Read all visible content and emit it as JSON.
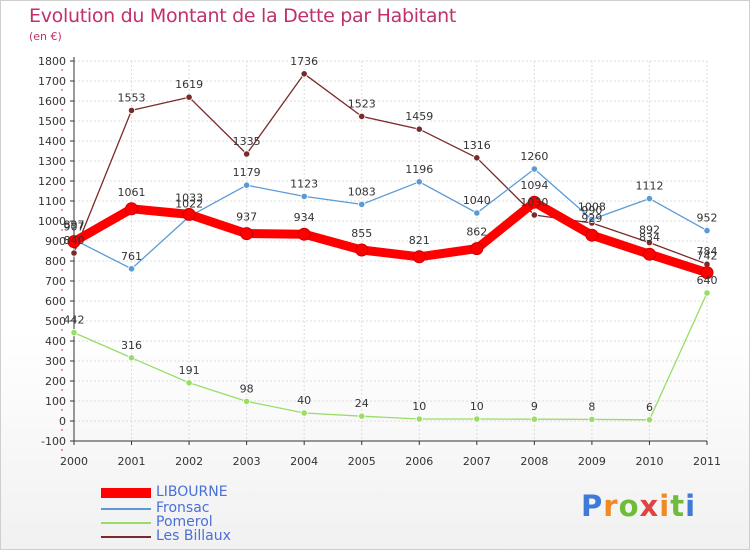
{
  "chart_data": {
    "type": "line",
    "title": "Evolution du Montant de la Dette par Habitant",
    "subtitle": "(en €)",
    "categories": [
      "2000",
      "2001",
      "2002",
      "2003",
      "2004",
      "2005",
      "2006",
      "2007",
      "2008",
      "2009",
      "2010",
      "2011"
    ],
    "ylim": [
      -100,
      1800
    ],
    "yticks": [
      -100,
      0,
      100,
      200,
      300,
      400,
      500,
      600,
      700,
      800,
      900,
      1000,
      1100,
      1200,
      1300,
      1400,
      1500,
      1600,
      1700,
      1800
    ],
    "grid": true,
    "legend_position": "bottom-left",
    "series": [
      {
        "name": "LIBOURNE",
        "color": "#ff0000",
        "values": [
          897,
          1061,
          1033,
          937,
          934,
          855,
          821,
          862,
          1094,
          929,
          834,
          742
        ],
        "labels": [
          "897",
          "1061",
          "1033",
          "937",
          "934",
          "855",
          "821",
          "862",
          "1094",
          "929",
          "834",
          "742"
        ]
      },
      {
        "name": "Fronsac",
        "color": "#5b9bd5",
        "values": [
          907,
          761,
          1022,
          1179,
          1123,
          1083,
          1196,
          1040,
          1260,
          1008,
          1112,
          952
        ],
        "labels": [
          "907",
          "761",
          "1022",
          "1179",
          "1123",
          "1083",
          "1196",
          "1040",
          "1260",
          "1008",
          "1112",
          "952"
        ]
      },
      {
        "name": "Pomerol",
        "color": "#99dd66",
        "values": [
          442,
          316,
          191,
          98,
          40,
          24,
          10,
          10,
          9,
          8,
          6,
          640
        ],
        "labels": [
          "442",
          "316",
          "191",
          "98",
          "40",
          "24",
          "10",
          "10",
          "9",
          "8",
          "6",
          "640"
        ]
      },
      {
        "name": "Les Billaux",
        "color": "#7a2a2a",
        "values": [
          840,
          1553,
          1619,
          1335,
          1736,
          1523,
          1459,
          1316,
          1030,
          990,
          892,
          784
        ],
        "labels": [
          "840",
          "1553",
          "1619",
          "1335",
          "1736",
          "1523",
          "1459",
          "1316",
          "1030",
          "990",
          "892",
          "784"
        ]
      }
    ]
  },
  "logo": {
    "letters": [
      "P",
      "r",
      "o",
      "x",
      "i",
      "t",
      "i"
    ]
  }
}
